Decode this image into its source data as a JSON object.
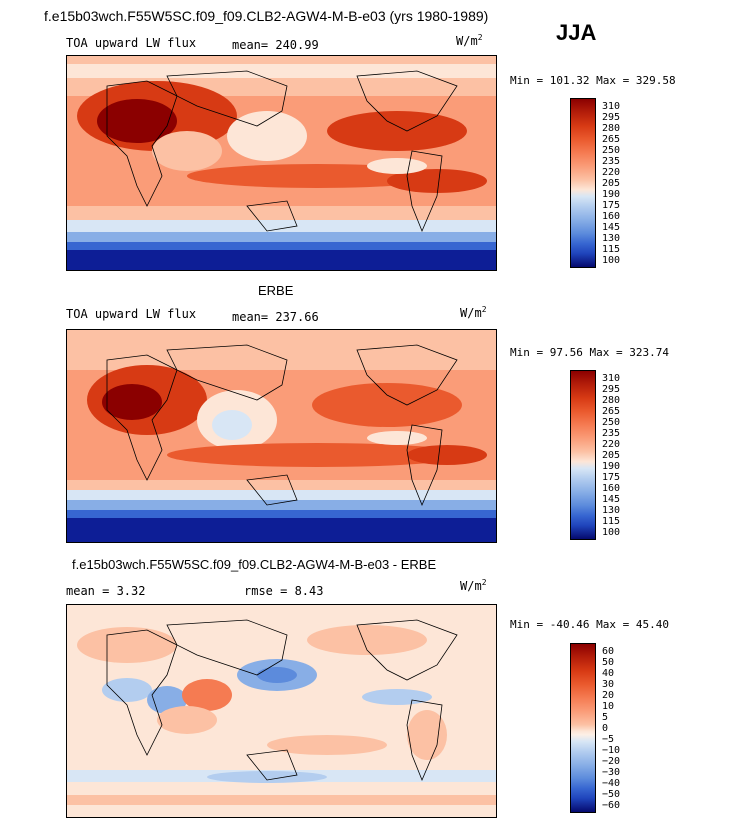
{
  "page": {
    "main_title": "f.e15b03wch.F55W5SC.f09_f09.CLB2-AGW4-M-B-e03 (yrs 1980-1989)",
    "season": "JJA",
    "units_base": "W/m",
    "units_exp": "2"
  },
  "panel1": {
    "variable": "TOA upward LW flux",
    "mean_text": "mean= 240.99",
    "minmax_text": "Min = 101.32 Max = 329.58",
    "levels": [
      "310",
      "295",
      "280",
      "265",
      "250",
      "235",
      "220",
      "205",
      "190",
      "175",
      "160",
      "145",
      "130",
      "115",
      "100"
    ]
  },
  "panel2": {
    "heading": "ERBE",
    "variable": "TOA upward LW flux",
    "mean_text": "mean= 237.66",
    "minmax_text": "Min =  97.56 Max = 323.74",
    "levels": [
      "310",
      "295",
      "280",
      "265",
      "250",
      "235",
      "220",
      "205",
      "190",
      "175",
      "160",
      "145",
      "130",
      "115",
      "100"
    ]
  },
  "panel3": {
    "heading": "f.e15b03wch.F55W5SC.f09_f09.CLB2-AGW4-M-B-e03 - ERBE",
    "mean_text": "mean =    3.32",
    "rmse_text": "rmse =    8.43",
    "minmax_text": "Min = -40.46 Max =  45.40",
    "levels": [
      "60",
      "50",
      "40",
      "30",
      "20",
      "10",
      "5",
      "0",
      "−5",
      "−10",
      "−20",
      "−30",
      "−40",
      "−50",
      "−60"
    ]
  },
  "colors": {
    "field_scale": [
      "#8b0000",
      "#b41e0a",
      "#d73a14",
      "#ea5a2e",
      "#f57b52",
      "#fa9c78",
      "#fcc1a4",
      "#fde6d7",
      "#d8e6f5",
      "#b3cdef",
      "#88aee6",
      "#5c8bdc",
      "#3766d1",
      "#1f44bb",
      "#0d1e96",
      "#050a6e"
    ],
    "diff_scale": [
      "#8b0000",
      "#b41e0a",
      "#d73a14",
      "#ea5a2e",
      "#f57b52",
      "#fa9c78",
      "#fcc1a4",
      "#fde6d7",
      "#fdf0e6",
      "#d8e6f5",
      "#b3cdef",
      "#88aee6",
      "#5c8bdc",
      "#3766d1",
      "#1f44bb",
      "#050a6e"
    ]
  }
}
